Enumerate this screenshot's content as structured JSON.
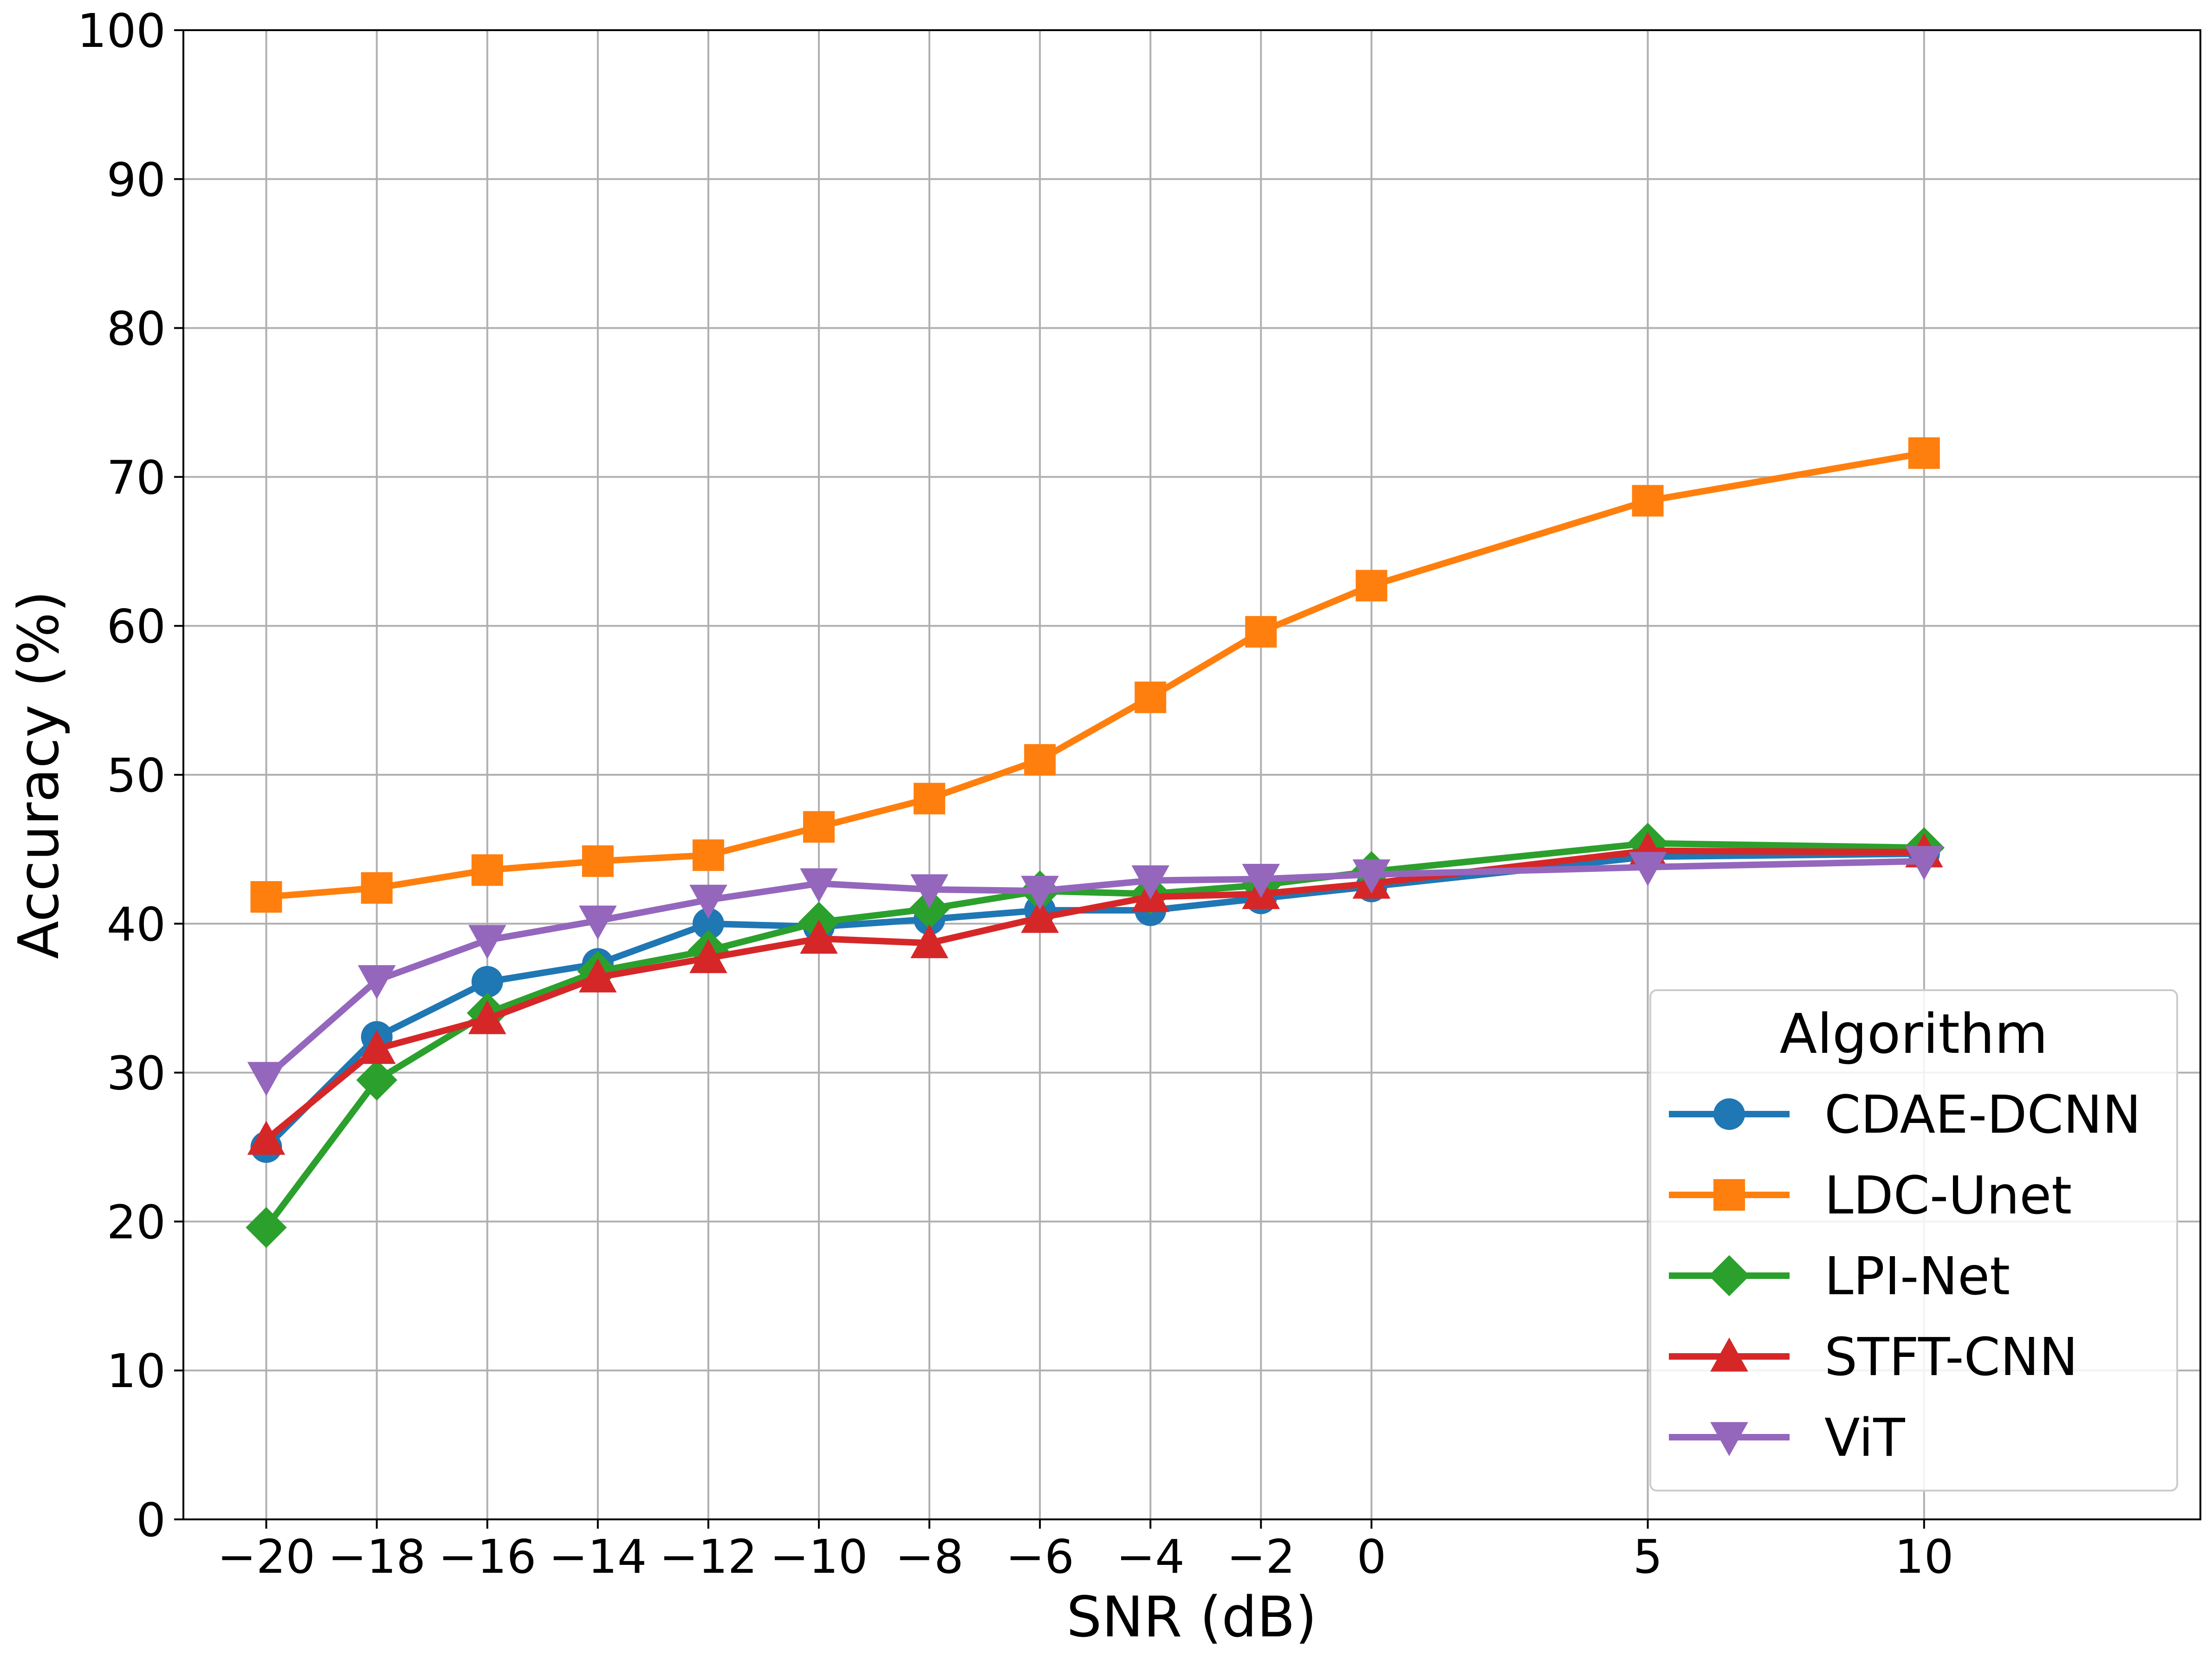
{
  "chart_data": {
    "type": "line",
    "title": "",
    "xlabel": "SNR (dB)",
    "ylabel": "Accuracy (%)",
    "x": [
      -20,
      -18,
      -16,
      -14,
      -12,
      -10,
      -8,
      -6,
      -4,
      -2,
      0,
      5,
      10
    ],
    "x_tick_labels": [
      "−20",
      "−18",
      "−16",
      "−14",
      "−12",
      "−10",
      "−8",
      "−6",
      "−4",
      "−2",
      "0",
      "5",
      "10"
    ],
    "xlim": [
      -21.5,
      15
    ],
    "ylim": [
      0,
      100
    ],
    "y_ticks": [
      0,
      10,
      20,
      30,
      40,
      50,
      60,
      70,
      80,
      90,
      100
    ],
    "y_tick_labels": [
      "0",
      "10",
      "20",
      "30",
      "40",
      "50",
      "60",
      "70",
      "80",
      "90",
      "100"
    ],
    "grid": true,
    "legend": {
      "title": "Algorithm",
      "position": "lower-right"
    },
    "series": [
      {
        "name": "CDAE-DCNN",
        "color": "#1f77b4",
        "marker": "circle",
        "values": [
          25.0,
          32.4,
          36.1,
          37.3,
          40.0,
          39.8,
          40.3,
          40.9,
          40.9,
          41.7,
          42.5,
          44.5,
          44.7
        ]
      },
      {
        "name": "LDC-Unet",
        "color": "#ff7f0e",
        "marker": "square",
        "values": [
          41.8,
          42.4,
          43.6,
          44.2,
          44.6,
          46.5,
          48.4,
          51.0,
          55.2,
          59.6,
          62.7,
          68.4,
          71.6
        ]
      },
      {
        "name": "LPI-Net",
        "color": "#2ca02c",
        "marker": "diamond",
        "values": [
          19.6,
          29.5,
          34.0,
          36.8,
          38.2,
          40.1,
          41.0,
          42.2,
          42.0,
          42.6,
          43.5,
          45.4,
          45.1
        ]
      },
      {
        "name": "STFT-CNN",
        "color": "#d62728",
        "marker": "triangle-up",
        "values": [
          25.5,
          31.6,
          33.6,
          36.4,
          37.7,
          39.0,
          38.7,
          40.4,
          41.8,
          42.0,
          42.7,
          44.9,
          44.8
        ]
      },
      {
        "name": "ViT",
        "color": "#9467bd",
        "marker": "triangle-down",
        "values": [
          29.7,
          36.2,
          38.9,
          40.2,
          41.6,
          42.7,
          42.3,
          42.2,
          42.9,
          43.0,
          43.3,
          43.8,
          44.2
        ]
      }
    ]
  }
}
